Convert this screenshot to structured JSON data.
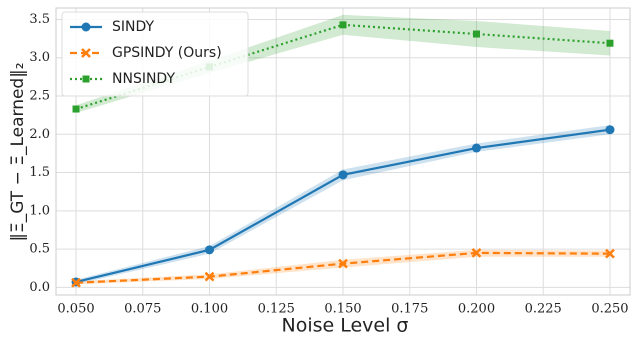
{
  "chart_data": {
    "type": "line",
    "xlabel": "Noise Level σ",
    "ylabel": "‖Ξ_GT − Ξ_Learned‖₂",
    "x": [
      0.05,
      0.1,
      0.15,
      0.2,
      0.25
    ],
    "series": [
      {
        "name": "SINDY",
        "color": "#1f77b4",
        "marker": "circle",
        "dash": "solid",
        "values": [
          0.07,
          0.49,
          1.47,
          1.82,
          2.06
        ],
        "lower": [
          0.04,
          0.44,
          1.4,
          1.77,
          2.0
        ],
        "upper": [
          0.1,
          0.54,
          1.54,
          1.88,
          2.12
        ]
      },
      {
        "name": "GPSINDY (Ours)",
        "color": "#ff7f0e",
        "marker": "x",
        "dash": "dashed",
        "values": [
          0.06,
          0.14,
          0.31,
          0.45,
          0.44
        ],
        "lower": [
          0.04,
          0.11,
          0.26,
          0.4,
          0.4
        ],
        "upper": [
          0.08,
          0.17,
          0.36,
          0.49,
          0.48
        ]
      },
      {
        "name": "NNSINDY",
        "color": "#2ca02c",
        "marker": "square",
        "dash": "dotted",
        "values": [
          2.33,
          2.88,
          3.43,
          3.31,
          3.19
        ],
        "lower": [
          2.28,
          2.8,
          3.3,
          3.14,
          3.03
        ],
        "upper": [
          2.38,
          2.96,
          3.56,
          3.48,
          3.35
        ]
      }
    ],
    "xlim": [
      0.0425,
      0.2575
    ],
    "ylim": [
      -0.1,
      3.65
    ],
    "xticks": [
      {
        "value": 0.05,
        "label": "0.050"
      },
      0.075,
      {
        "value": 0.1,
        "label": "0.100"
      },
      0.125,
      {
        "value": 0.15,
        "label": "0.150"
      },
      0.175,
      {
        "value": 0.2,
        "label": "0.200"
      },
      0.225,
      {
        "value": 0.25,
        "label": "0.250"
      }
    ],
    "yticks": [
      {
        "value": 0,
        "label": "0.0"
      },
      0.5,
      {
        "value": 1,
        "label": "1.0"
      },
      1.5,
      {
        "value": 2,
        "label": "2.0"
      },
      2.5,
      {
        "value": 3,
        "label": "3.0"
      },
      3.5
    ],
    "grid": true,
    "legend": "upper left"
  }
}
